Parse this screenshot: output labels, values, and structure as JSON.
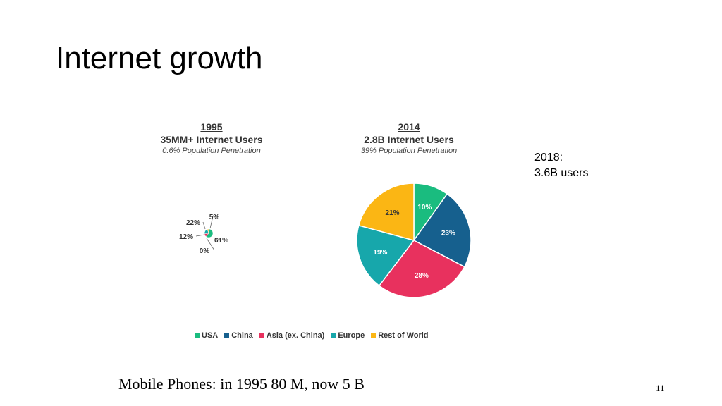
{
  "slide": {
    "title": "Internet growth",
    "note_line1": "2018:",
    "note_line2": "3.6B users",
    "footer": "Mobile Phones:  in 1995  80 M, now 5 B",
    "page_number": "11"
  },
  "chart_data": {
    "type": "pie",
    "legend": [
      {
        "name": "USA",
        "color": "#1ABC7F"
      },
      {
        "name": "China",
        "color": "#16608E"
      },
      {
        "name": "Asia (ex. China)",
        "color": "#E8315E"
      },
      {
        "name": "Europe",
        "color": "#17A7AB"
      },
      {
        "name": "Rest of World",
        "color": "#FBB614"
      }
    ],
    "charts": [
      {
        "year": "1995",
        "users": "35MM+ Internet Users",
        "penetration": "0.6% Population Penetration",
        "slices": [
          {
            "name": "USA",
            "value": 61,
            "label": "61%"
          },
          {
            "name": "China",
            "value": 0,
            "label": "0%"
          },
          {
            "name": "Asia (ex. China)",
            "value": 12,
            "label": "12%"
          },
          {
            "name": "Europe",
            "value": 22,
            "label": "22%"
          },
          {
            "name": "Rest of World",
            "value": 5,
            "label": "5%"
          }
        ]
      },
      {
        "year": "2014",
        "users": "2.8B Internet Users",
        "penetration": "39% Population Penetration",
        "slices": [
          {
            "name": "USA",
            "value": 10,
            "label": "10%"
          },
          {
            "name": "China",
            "value": 23,
            "label": "23%"
          },
          {
            "name": "Asia (ex. China)",
            "value": 28,
            "label": "28%"
          },
          {
            "name": "Europe",
            "value": 19,
            "label": "19%"
          },
          {
            "name": "Rest of World",
            "value": 21,
            "label": "21%"
          }
        ]
      }
    ]
  }
}
